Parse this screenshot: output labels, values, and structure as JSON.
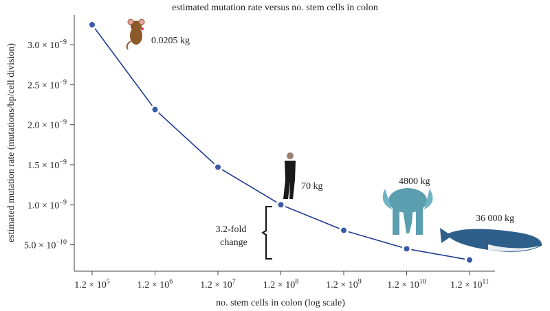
{
  "chart_data": {
    "type": "line",
    "title": "estimated mutation rate versus no. stem cells in colon",
    "xlabel": "no. stem cells in colon (log scale)",
    "ylabel": "estimated mutation rate (mutations/bp/cell division)",
    "xscale": "log",
    "x": [
      120000.0,
      1200000.0,
      12000000.0,
      120000000.0,
      1200000000.0,
      12000000000.0,
      120000000000.0
    ],
    "y": [
      3.25e-09,
      2.19e-09,
      1.47e-09,
      1e-09,
      6.8e-10,
      4.5e-10,
      3.1e-10
    ],
    "xtick_labels": [
      {
        "mant": "1.2 × 10",
        "exp": "5"
      },
      {
        "mant": "1.2 × 10",
        "exp": "6"
      },
      {
        "mant": "1.2 × 10",
        "exp": "7"
      },
      {
        "mant": "1.2 × 10",
        "exp": "8"
      },
      {
        "mant": "1.2 × 10",
        "exp": "9"
      },
      {
        "mant": "1.2 × 10",
        "exp": "10"
      },
      {
        "mant": "1.2 × 10",
        "exp": "11"
      }
    ],
    "yticks": [
      3e-09,
      2.5e-09,
      2e-09,
      1.5e-09,
      1e-09,
      5e-10
    ],
    "ytick_labels": [
      {
        "mant": "3.0 × 10",
        "exp": "−9"
      },
      {
        "mant": "2.5 × 10",
        "exp": "−9"
      },
      {
        "mant": "2.0 × 10",
        "exp": "−9"
      },
      {
        "mant": "1.5 × 10",
        "exp": "−9"
      },
      {
        "mant": "1.0 × 10",
        "exp": "−9"
      },
      {
        "mant": "5.0 × 10",
        "exp": "−10"
      }
    ],
    "ylim": [
      1.7e-10,
      3.37e-09
    ],
    "grid": false,
    "line_color": "#1f3a93",
    "marker_color": "#3a5aa8",
    "annotations": {
      "mouse": "0.0205 kg",
      "human": "70 kg",
      "elephant": "4800 kg",
      "whale": "36 000 kg",
      "fold_line1": "3.2-fold",
      "fold_line2": "change"
    }
  }
}
